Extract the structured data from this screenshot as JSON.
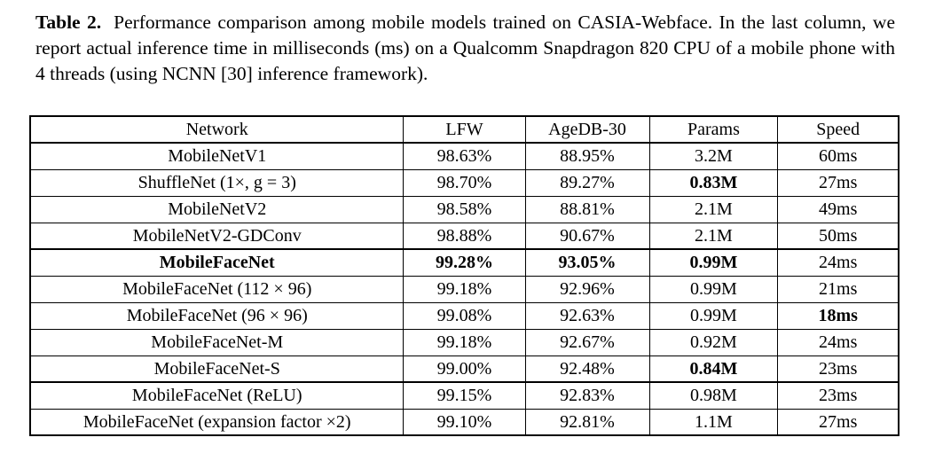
{
  "caption": {
    "label": "Table 2.",
    "text": "Performance comparison among mobile models trained on CASIA-Webface. In the last column, we report actual inference time in milliseconds (ms) on a Qualcomm Snapdragon 820 CPU of a mobile phone with 4 threads (using NCNN [30] inference framework)."
  },
  "table": {
    "columns": [
      "Network",
      "LFW",
      "AgeDB-30",
      "Params",
      "Speed"
    ],
    "groups": [
      {
        "rows": [
          {
            "cells": [
              "MobileNetV1",
              "98.63%",
              "88.95%",
              "3.2M",
              "60ms"
            ],
            "bold": [
              false,
              false,
              false,
              false,
              false
            ]
          },
          {
            "cells": [
              "ShuffleNet (1×, g = 3)",
              "98.70%",
              "89.27%",
              "0.83M",
              "27ms"
            ],
            "bold": [
              false,
              false,
              false,
              true,
              false
            ]
          },
          {
            "cells": [
              "MobileNetV2",
              "98.58%",
              "88.81%",
              "2.1M",
              "49ms"
            ],
            "bold": [
              false,
              false,
              false,
              false,
              false
            ]
          },
          {
            "cells": [
              "MobileNetV2-GDConv",
              "98.88%",
              "90.67%",
              "2.1M",
              "50ms"
            ],
            "bold": [
              false,
              false,
              false,
              false,
              false
            ]
          }
        ]
      },
      {
        "rows": [
          {
            "cells": [
              "MobileFaceNet",
              "99.28%",
              "93.05%",
              "0.99M",
              "24ms"
            ],
            "bold": [
              true,
              true,
              true,
              true,
              false
            ]
          },
          {
            "cells": [
              "MobileFaceNet (112 × 96)",
              "99.18%",
              "92.96%",
              "0.99M",
              "21ms"
            ],
            "bold": [
              false,
              false,
              false,
              false,
              false
            ]
          },
          {
            "cells": [
              "MobileFaceNet (96 × 96)",
              "99.08%",
              "92.63%",
              "0.99M",
              "18ms"
            ],
            "bold": [
              false,
              false,
              false,
              false,
              true
            ]
          },
          {
            "cells": [
              "MobileFaceNet-M",
              "99.18%",
              "92.67%",
              "0.92M",
              "24ms"
            ],
            "bold": [
              false,
              false,
              false,
              false,
              false
            ]
          },
          {
            "cells": [
              "MobileFaceNet-S",
              "99.00%",
              "92.48%",
              "0.84M",
              "23ms"
            ],
            "bold": [
              false,
              false,
              false,
              true,
              false
            ]
          }
        ]
      },
      {
        "rows": [
          {
            "cells": [
              "MobileFaceNet (ReLU)",
              "99.15%",
              "92.83%",
              "0.98M",
              "23ms"
            ],
            "bold": [
              false,
              false,
              false,
              false,
              false
            ]
          },
          {
            "cells": [
              "MobileFaceNet (expansion factor ×2)",
              "99.10%",
              "92.81%",
              "1.1M",
              "27ms"
            ],
            "bold": [
              false,
              false,
              false,
              false,
              false
            ]
          }
        ]
      }
    ]
  },
  "chart_data": {
    "type": "table",
    "title": "Performance comparison among mobile models trained on CASIA-Webface",
    "columns": [
      "Network",
      "LFW",
      "AgeDB-30",
      "Params",
      "Speed"
    ],
    "rows": [
      [
        "MobileNetV1",
        "98.63%",
        "88.95%",
        "3.2M",
        "60ms"
      ],
      [
        "ShuffleNet (1×, g = 3)",
        "98.70%",
        "89.27%",
        "0.83M",
        "27ms"
      ],
      [
        "MobileNetV2",
        "98.58%",
        "88.81%",
        "2.1M",
        "49ms"
      ],
      [
        "MobileNetV2-GDConv",
        "98.88%",
        "90.67%",
        "2.1M",
        "50ms"
      ],
      [
        "MobileFaceNet",
        "99.28%",
        "93.05%",
        "0.99M",
        "24ms"
      ],
      [
        "MobileFaceNet (112 × 96)",
        "99.18%",
        "92.96%",
        "0.99M",
        "21ms"
      ],
      [
        "MobileFaceNet (96 × 96)",
        "99.08%",
        "92.63%",
        "0.99M",
        "18ms"
      ],
      [
        "MobileFaceNet-M",
        "99.18%",
        "92.67%",
        "0.92M",
        "24ms"
      ],
      [
        "MobileFaceNet-S",
        "99.00%",
        "92.48%",
        "0.84M",
        "23ms"
      ],
      [
        "MobileFaceNet (ReLU)",
        "99.15%",
        "92.83%",
        "0.98M",
        "23ms"
      ],
      [
        "MobileFaceNet (expansion factor ×2)",
        "99.10%",
        "92.81%",
        "1.1M",
        "27ms"
      ]
    ]
  }
}
